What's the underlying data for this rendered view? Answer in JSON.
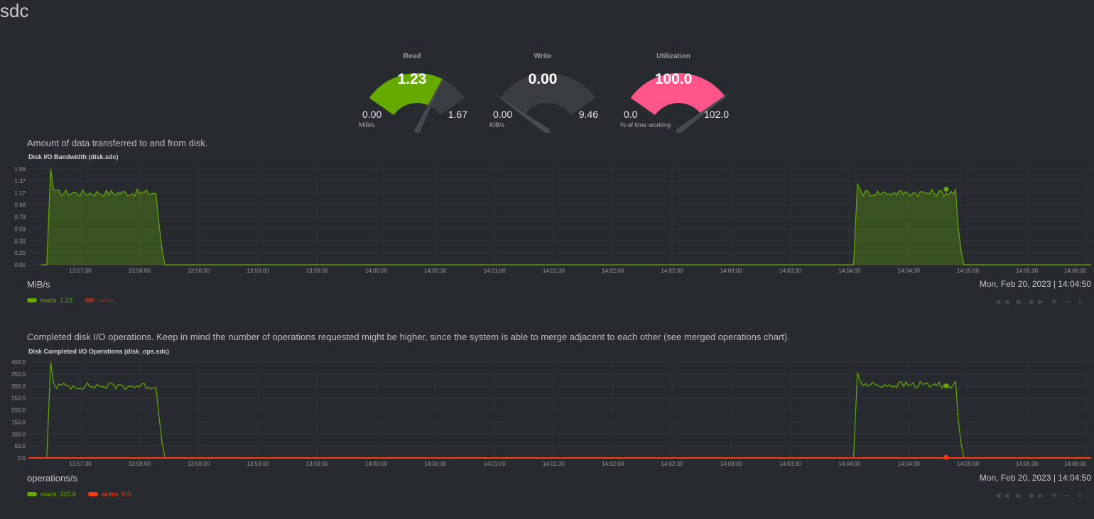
{
  "page": {
    "title": "sdc"
  },
  "gauges": [
    {
      "title": "Read",
      "value": "1.23",
      "value_num": 1.23,
      "min": "0.00",
      "max": "1.67",
      "max_num": 1.67,
      "unit": "MiB/s",
      "color": "#66aa00"
    },
    {
      "title": "Write",
      "value": "0.00",
      "value_num": 0.0,
      "min": "0.00",
      "max": "9.46",
      "max_num": 9.46,
      "unit": "KiB/s",
      "color": "#393d42"
    },
    {
      "title": "Utilization",
      "value": "100.0",
      "value_num": 100.0,
      "min": "0.0",
      "max": "102.0",
      "max_num": 102.0,
      "unit": "% of time working",
      "color": "#ff5588"
    }
  ],
  "colors": {
    "reads": "#66aa00",
    "writes": "#fe3912",
    "background": "#272b30",
    "grid": "#313539"
  },
  "charts": [
    {
      "info": "Amount of data transferred to and from disk.",
      "title": "Disk I/O Bandwidth (disk.sdc)",
      "units": "MiB/s",
      "date": "Mon, Feb 20, 2023 | 14:04:50",
      "legend": [
        {
          "name": "reads",
          "value": "1.23"
        },
        {
          "name": "writes",
          "value": ""
        }
      ]
    },
    {
      "info": "Completed disk I/O operations. Keep in mind the number of operations requested might be higher, since the system is able to merge adjacent to each other (see merged operations chart).",
      "title": "Disk Completed I/O Operations (disk_ops.sdc)",
      "units": "operations/s",
      "date": "Mon, Feb 20, 2023 | 14:04:50",
      "legend": [
        {
          "name": "reads",
          "value": "315.6"
        },
        {
          "name": "writes",
          "value": "0.0"
        }
      ]
    }
  ],
  "toolbar": {
    "symbols": "◀◀ ▶ ▶▶ ✚ ━  ⇕"
  },
  "chart_data": [
    {
      "type": "area",
      "title": "Disk I/O Bandwidth (disk.sdc)",
      "ylabel": "MiB/s",
      "ylim": [
        0,
        1.56
      ],
      "yticks": [
        "1.56",
        "1.37",
        "1.17",
        "0.98",
        "0.78",
        "0.59",
        "0.39",
        "0.20",
        "0.00"
      ],
      "xticks": [
        "13:57:30",
        "13:58:00",
        "13:58:30",
        "13:59:00",
        "13:59:30",
        "14:00:00",
        "14:00:30",
        "14:01:00",
        "14:01:30",
        "14:02:00",
        "14:02:30",
        "14:03:00",
        "14:03:30",
        "14:04:00",
        "14:04:30",
        "14:05:00",
        "14:05:30",
        "14:06:00"
      ],
      "x_start_seconds": 0,
      "series": [
        {
          "name": "reads",
          "segments": [
            {
              "start": 13,
              "end": 73,
              "peak": 1.56,
              "level": 1.17
            },
            {
              "start": 422,
              "end": 478,
              "peak": 1.32,
              "level": 1.17
            }
          ]
        },
        {
          "name": "writes",
          "segments": []
        }
      ]
    },
    {
      "type": "line",
      "title": "Disk Completed I/O Operations (disk_ops.sdc)",
      "ylabel": "operations/s",
      "ylim": [
        0,
        420
      ],
      "yticks": [
        "400.0",
        "350.0",
        "300.0",
        "250.0",
        "200.0",
        "150.0",
        "100.0",
        "50.0",
        "0.0"
      ],
      "xticks": [
        "13:57:30",
        "13:58:00",
        "13:58:30",
        "13:59:00",
        "13:59:30",
        "14:00:00",
        "14:00:30",
        "14:01:00",
        "14:01:30",
        "14:02:00",
        "14:02:30",
        "14:03:00",
        "14:03:30",
        "14:04:00",
        "14:04:30",
        "14:05:00",
        "14:05:30",
        "14:06:00"
      ],
      "series": [
        {
          "name": "reads",
          "segments": [
            {
              "start": 13,
              "end": 73,
              "peak": 420,
              "level": 315
            },
            {
              "start": 422,
              "end": 478,
              "peak": 375,
              "level": 320
            }
          ]
        },
        {
          "name": "writes",
          "value": 0
        }
      ]
    }
  ]
}
